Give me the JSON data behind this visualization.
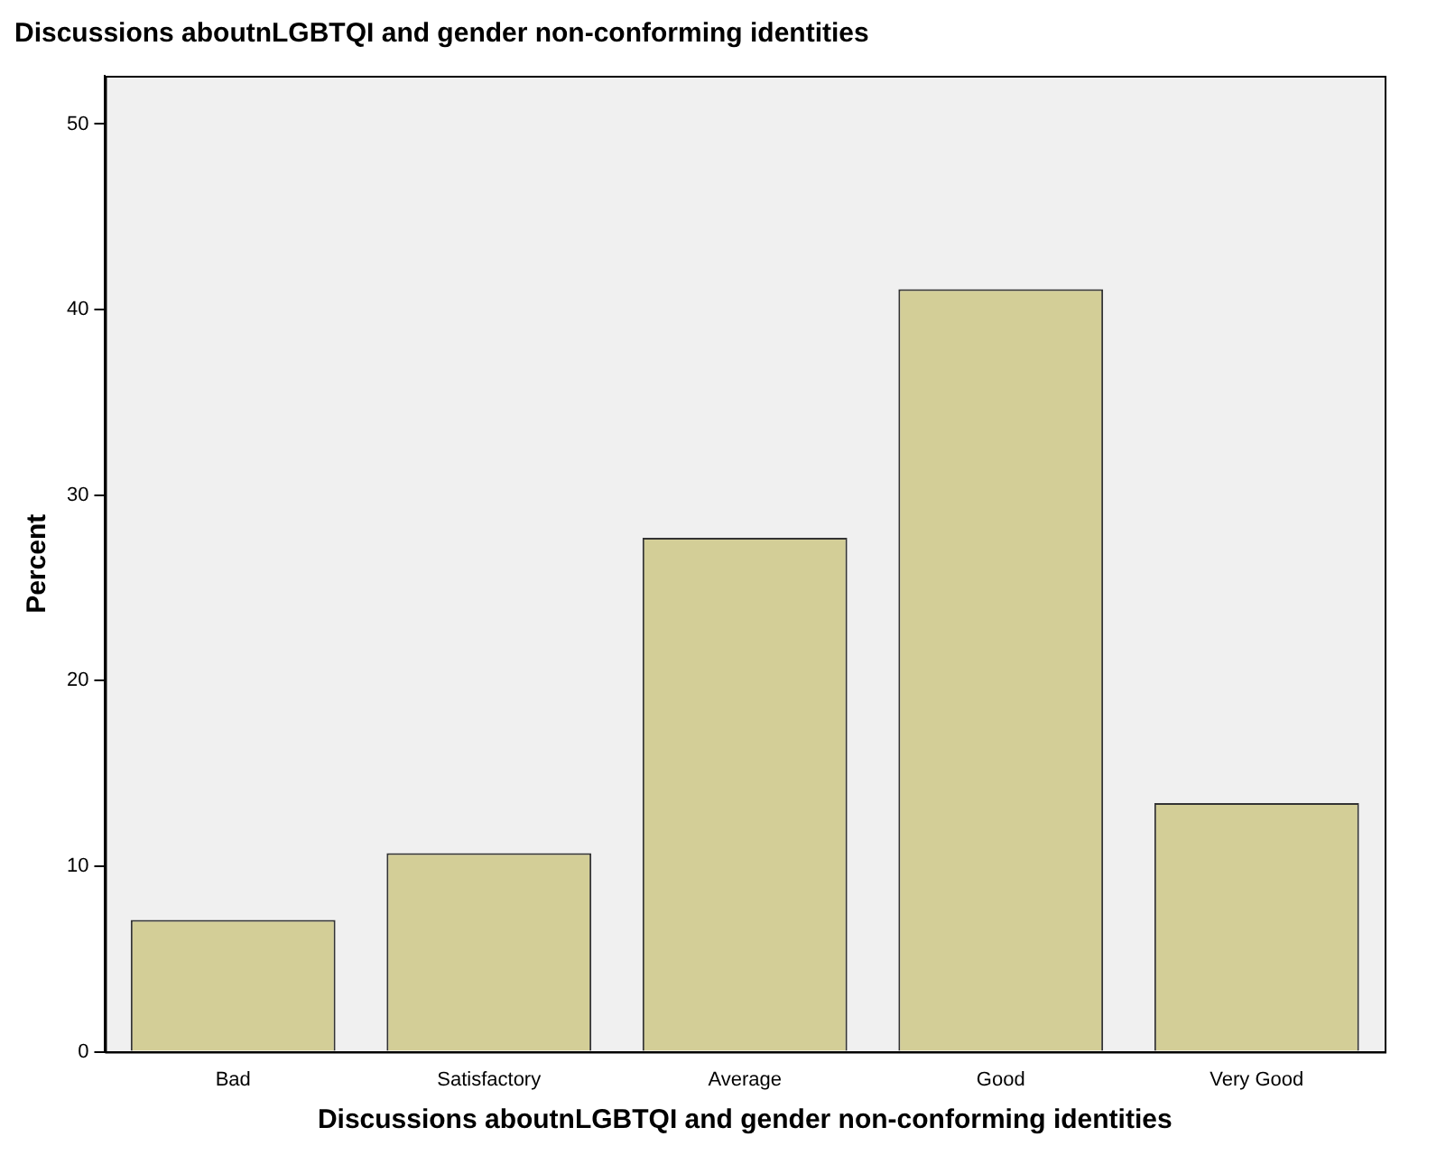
{
  "chart_data": {
    "type": "bar",
    "title": "Discussions aboutnLGBTQI and gender non-conforming identities",
    "xlabel": "Discussions aboutnLGBTQI and gender non-conforming identities",
    "ylabel": "Percent",
    "categories": [
      "Bad",
      "Satisfactory",
      "Average",
      "Good",
      "Very Good"
    ],
    "values": [
      7.1,
      10.7,
      27.7,
      41.1,
      13.4
    ],
    "color": "#d3ce97",
    "ylim": [
      0,
      52.6
    ],
    "yticks": [
      0,
      10,
      20,
      30,
      40,
      50
    ],
    "grid": false,
    "legend": false
  }
}
